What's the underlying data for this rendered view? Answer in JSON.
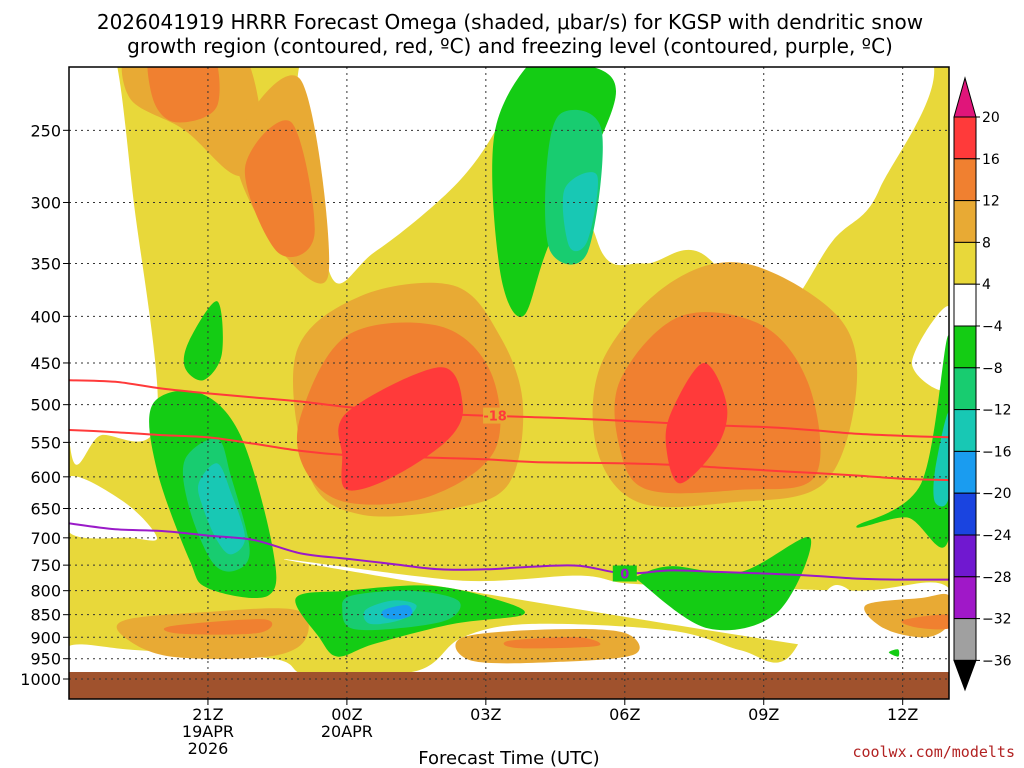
{
  "title_line1": "2026041919 HRRR Forecast Omega (shaded, μbar/s) for KGSP with dendritic snow",
  "title_line2": "growth region (contoured, red, ºC) and freezing level (contoured, purple, ºC)",
  "credit": "coolwx.com/modelts",
  "chart_data": {
    "type": "contour",
    "title": "2026041919 HRRR Forecast Omega (shaded, μbar/s) for KGSP with dendritic snow growth region (contoured, red, ºC) and freezing level (contoured, purple, ºC)",
    "xlabel": "Forecast Time (UTC)",
    "ylabel": "",
    "x_unit": "hours from 2026041919",
    "xlim": [
      -1,
      18
    ],
    "x_ticks": [
      {
        "x": 2,
        "label": "21Z",
        "sub": [
          "19APR",
          "2026"
        ]
      },
      {
        "x": 5,
        "label": "00Z",
        "sub": [
          "20APR"
        ]
      },
      {
        "x": 8,
        "label": "03Z",
        "sub": []
      },
      {
        "x": 11,
        "label": "06Z",
        "sub": []
      },
      {
        "x": 14,
        "label": "09Z",
        "sub": []
      },
      {
        "x": 17,
        "label": "12Z",
        "sub": []
      }
    ],
    "y_scale": "log-pressure (inverted)",
    "ylim": [
      1000,
      200
    ],
    "y_ticks": [
      250,
      300,
      350,
      400,
      450,
      500,
      550,
      600,
      650,
      700,
      750,
      800,
      850,
      900,
      950,
      1000
    ],
    "colorbar": {
      "levels": [
        "20",
        "16",
        "12",
        "8",
        "4",
        "−4",
        "−8",
        "−12",
        "−16",
        "−20",
        "−24",
        "−28",
        "−32",
        "−36"
      ],
      "colors": [
        "#ff3a3a",
        "#f08030",
        "#e8aa34",
        "#e8d83a",
        "#ffffff",
        "#14cc14",
        "#18cc70",
        "#18c8b4",
        "#1a9cf0",
        "#1a44e0",
        "#7018d0",
        "#a018c8",
        "#a0a0a0"
      ],
      "top_color": "#e0157a",
      "bottom_color": "#000000"
    },
    "contours": [
      {
        "name": "-18",
        "color": "#ff3a3a",
        "label": "-18",
        "points": [
          [
            -1,
            470
          ],
          [
            0,
            472
          ],
          [
            1,
            480
          ],
          [
            2,
            486
          ],
          [
            3,
            491
          ],
          [
            4,
            496
          ],
          [
            5,
            503
          ],
          [
            6,
            508
          ],
          [
            7,
            512
          ],
          [
            8,
            514
          ],
          [
            9,
            516
          ],
          [
            10,
            518
          ],
          [
            11,
            521
          ],
          [
            12,
            524
          ],
          [
            13,
            527
          ],
          [
            14,
            529
          ],
          [
            15,
            533
          ],
          [
            16,
            538
          ],
          [
            17,
            541
          ],
          [
            18,
            543
          ]
        ]
      },
      {
        "name": "-12",
        "color": "#ff3a3a",
        "label": "",
        "points": [
          [
            -1,
            533
          ],
          [
            0,
            536
          ],
          [
            1,
            540
          ],
          [
            2,
            543
          ],
          [
            3,
            552
          ],
          [
            4,
            562
          ],
          [
            5,
            568
          ],
          [
            6,
            570
          ],
          [
            7,
            572
          ],
          [
            8,
            574
          ],
          [
            9,
            578
          ],
          [
            10,
            579
          ],
          [
            11,
            580
          ],
          [
            12,
            582
          ],
          [
            13,
            586
          ],
          [
            14,
            590
          ],
          [
            15,
            594
          ],
          [
            16,
            598
          ],
          [
            17,
            603
          ],
          [
            18,
            605
          ]
        ]
      },
      {
        "name": "0",
        "color": "#9a1ac8",
        "label": "0",
        "points": [
          [
            -1,
            675
          ],
          [
            0,
            685
          ],
          [
            1,
            688
          ],
          [
            2,
            696
          ],
          [
            3,
            704
          ],
          [
            4,
            728
          ],
          [
            5,
            738
          ],
          [
            6,
            748
          ],
          [
            7,
            758
          ],
          [
            8,
            758
          ],
          [
            9,
            753
          ],
          [
            10,
            751
          ],
          [
            11,
            766
          ],
          [
            12,
            760
          ],
          [
            13,
            763
          ],
          [
            14,
            766
          ],
          [
            15,
            770
          ],
          [
            16,
            776
          ],
          [
            17,
            778
          ],
          [
            18,
            778
          ]
        ]
      }
    ],
    "omega_shading": [
      {
        "level": "8",
        "color": "#e8aa34",
        "areas": [
          [
            [
              0.4,
              200
            ],
            [
              2.6,
              200
            ],
            [
              3.2,
              265
            ],
            [
              2.6,
              280
            ],
            [
              1.5,
              250
            ],
            [
              0.3,
              230
            ]
          ],
          [
            [
              2.6,
              260
            ],
            [
              4,
              220
            ],
            [
              4.6,
              360
            ],
            [
              3.4,
              330
            ]
          ],
          [
            [
              3.9,
              440
            ],
            [
              5.3,
              380
            ],
            [
              7.3,
              370
            ],
            [
              8.3,
              420
            ],
            [
              8.8,
              500
            ],
            [
              8.5,
              610
            ],
            [
              7.3,
              650
            ],
            [
              5.3,
              660
            ],
            [
              4.2,
              600
            ]
          ],
          [
            [
              10.5,
              450
            ],
            [
              11.9,
              370
            ],
            [
              13.6,
              350
            ],
            [
              15.6,
              400
            ],
            [
              16,
              480
            ],
            [
              15.3,
              610
            ],
            [
              13.3,
              640
            ],
            [
              11.3,
              640
            ],
            [
              10.4,
              560
            ]
          ],
          [
            [
              16.2,
              830
            ],
            [
              17.4,
              815
            ],
            [
              18,
              810
            ],
            [
              18,
              870
            ],
            [
              17.5,
              900
            ],
            [
              16.6,
              880
            ]
          ],
          [
            [
              0.2,
              862
            ],
            [
              1.9,
              845
            ],
            [
              3.9,
              840
            ],
            [
              4.1,
              905
            ],
            [
              3.3,
              945
            ],
            [
              1.2,
              945
            ],
            [
              0.2,
              900
            ]
          ],
          [
            [
              7.5,
              900
            ],
            [
              9.5,
              882
            ],
            [
              11,
              890
            ],
            [
              11.2,
              940
            ],
            [
              9.5,
              958
            ],
            [
              7.7,
              955
            ]
          ]
        ]
      },
      {
        "level": "12",
        "color": "#f08030",
        "areas": [
          [
            [
              0.8,
              200
            ],
            [
              2,
              200
            ],
            [
              2.2,
              235
            ],
            [
              1.3,
              245
            ],
            [
              0.8,
              230
            ]
          ],
          [
            [
              2.8,
              275
            ],
            [
              3.8,
              245
            ],
            [
              4.3,
              325
            ],
            [
              3.5,
              340
            ]
          ],
          [
            [
              4,
              515
            ],
            [
              5,
              420
            ],
            [
              7,
              410
            ],
            [
              8.1,
              460
            ],
            [
              8.2,
              560
            ],
            [
              6.8,
              630
            ],
            [
              5,
              640
            ],
            [
              4.1,
              590
            ]
          ],
          [
            [
              10.9,
              470
            ],
            [
              12.2,
              400
            ],
            [
              14,
              410
            ],
            [
              15,
              480
            ],
            [
              15.1,
              600
            ],
            [
              13.5,
              620
            ],
            [
              11.5,
              620
            ],
            [
              10.9,
              560
            ]
          ],
          [
            [
              17,
              862
            ],
            [
              18,
              850
            ],
            [
              18,
              880
            ],
            [
              17.3,
              878
            ]
          ],
          [
            [
              1.2,
              875
            ],
            [
              3.2,
              860
            ],
            [
              3.1,
              890
            ],
            [
              1.4,
              892
            ]
          ],
          [
            [
              8.5,
              908
            ],
            [
              10,
              900
            ],
            [
              10.4,
              920
            ],
            [
              8.7,
              925
            ]
          ]
        ]
      },
      {
        "level": "16",
        "color": "#ff3a3a",
        "areas": [
          [
            [
              5,
              510
            ],
            [
              7,
              455
            ],
            [
              7.5,
              500
            ],
            [
              7.2,
              545
            ],
            [
              6,
              600
            ],
            [
              5,
              620
            ],
            [
              4.9,
              570
            ]
          ],
          [
            [
              12,
              510
            ],
            [
              12.7,
              450
            ],
            [
              13.2,
              500
            ],
            [
              13,
              555
            ],
            [
              12.2,
              610
            ],
            [
              11.9,
              560
            ]
          ]
        ]
      },
      {
        "level": "-4",
        "color": "#14cc14",
        "areas": [
          [
            [
              1.6,
              425
            ],
            [
              2.2,
              385
            ],
            [
              2.3,
              440
            ],
            [
              1.9,
              470
            ],
            [
              1.5,
              455
            ]
          ],
          [
            [
              0.8,
              500
            ],
            [
              1.8,
              485
            ],
            [
              2.7,
              540
            ],
            [
              3.4,
              720
            ],
            [
              3.3,
              810
            ],
            [
              2,
              795
            ],
            [
              1.6,
              740
            ],
            [
              0.9,
              590
            ]
          ],
          [
            [
              3.9,
              815
            ],
            [
              5,
              800
            ],
            [
              6.8,
              790
            ],
            [
              8.3,
              820
            ],
            [
              8.8,
              850
            ],
            [
              7.3,
              870
            ],
            [
              5.6,
              915
            ],
            [
              4.8,
              945
            ],
            [
              4.4,
              900
            ]
          ],
          [
            [
              9.2,
              205
            ],
            [
              10,
              210
            ],
            [
              10.8,
              230
            ],
            [
              9.4,
              330
            ],
            [
              8.8,
              400
            ],
            [
              8.3,
              355
            ],
            [
              8.2,
              250
            ]
          ],
          [
            [
              11.3,
              770
            ],
            [
              12,
              752
            ],
            [
              13.5,
              763
            ],
            [
              15,
              700
            ],
            [
              14.3,
              845
            ],
            [
              12.8,
              880
            ],
            [
              11.3,
              780
            ]
          ],
          [
            [
              16,
              680
            ],
            [
              17.4,
              610
            ],
            [
              18,
              420
            ],
            [
              18,
              700
            ],
            [
              17.1,
              665
            ]
          ],
          [
            [
              16.7,
              935
            ],
            [
              16.9,
              928
            ],
            [
              16.9,
              945
            ]
          ]
        ]
      },
      {
        "level": "-8",
        "color": "#18cc70",
        "areas": [
          [
            [
              1.5,
              575
            ],
            [
              2.2,
              545
            ],
            [
              2.5,
              600
            ],
            [
              2.9,
              720
            ],
            [
              2.6,
              760
            ],
            [
              2.1,
              745
            ],
            [
              1.6,
              650
            ]
          ],
          [
            [
              5.1,
              810
            ],
            [
              6.4,
              800
            ],
            [
              7.4,
              820
            ],
            [
              7.2,
              860
            ],
            [
              6.1,
              880
            ],
            [
              5.1,
              880
            ],
            [
              4.9,
              840
            ]
          ],
          [
            [
              9.6,
              240
            ],
            [
              10.5,
              250
            ],
            [
              10.2,
              340
            ],
            [
              9.4,
              340
            ],
            [
              9.3,
              280
            ]
          ]
        ]
      },
      {
        "level": "-12",
        "color": "#18c8b4",
        "areas": [
          [
            [
              1.8,
              610
            ],
            [
              2.2,
              580
            ],
            [
              2.5,
              625
            ],
            [
              2.8,
              700
            ],
            [
              2.5,
              730
            ],
            [
              2.2,
              705
            ],
            [
              1.9,
              650
            ]
          ],
          [
            [
              5.4,
              840
            ],
            [
              6,
              820
            ],
            [
              6.5,
              830
            ],
            [
              6.2,
              860
            ],
            [
              5.5,
              870
            ]
          ],
          [
            [
              9.7,
              290
            ],
            [
              10.4,
              280
            ],
            [
              10.2,
              330
            ],
            [
              9.8,
              335
            ]
          ],
          [
            [
              17.7,
              590
            ],
            [
              18,
              510
            ],
            [
              18,
              630
            ],
            [
              17.7,
              640
            ]
          ]
        ]
      },
      {
        "level": "-16",
        "color": "#1a9cf0",
        "areas": [
          [
            [
              5.8,
              840
            ],
            [
              6.3,
              830
            ],
            [
              6.4,
              850
            ],
            [
              6.1,
              860
            ],
            [
              5.8,
              855
            ]
          ]
        ]
      }
    ]
  },
  "colorbar_labels": {
    "l0": "20",
    "l1": "16",
    "l2": "12",
    "l3": "8",
    "l4": "4",
    "l5": "−4",
    "l6": "−8",
    "l7": "−12",
    "l8": "−16",
    "l9": "−20",
    "l10": "−24",
    "l11": "−28",
    "l12": "−32",
    "l13": "−36"
  }
}
